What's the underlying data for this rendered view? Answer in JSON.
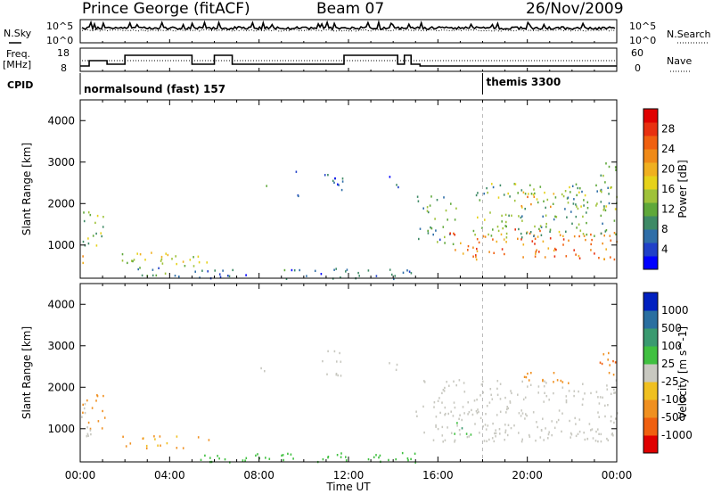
{
  "header": {
    "station": "Prince George (fitACF)",
    "beam": "Beam 07",
    "date": "26/Nov/2009"
  },
  "side_labels": {
    "nsky": "N.Sky",
    "nsearch": "N.Search",
    "freq_top": "Freq.",
    "freq_unit": "[MHz]",
    "nave": "Nave",
    "cpid": "CPID"
  },
  "noise_axis": {
    "left_top": "10^5",
    "left_bottom": "10^0",
    "right_top": "10^5",
    "right_bottom": "10^0"
  },
  "freq_axis": {
    "left_ticks": [
      "18",
      "8"
    ],
    "right_ticks": [
      "60",
      "0"
    ]
  },
  "cpid": {
    "first": "normalsound (fast) 157",
    "second": "themis 3300",
    "switch_hour": 18
  },
  "x_axis": {
    "label": "Time UT",
    "range_hours": [
      0,
      24
    ],
    "tick_labels": [
      "00:00",
      "04:00",
      "08:00",
      "12:00",
      "16:00",
      "20:00",
      "00:00"
    ]
  },
  "chart_data": [
    {
      "type": "heatmap",
      "panel": "power",
      "ylabel": "Slant Range [km]",
      "ylim": [
        200,
        4500
      ],
      "yticks": [
        "1000",
        "2000",
        "3000",
        "4000"
      ],
      "colorbar_label": "Power [dB]",
      "colorbar_ticks": [
        "4",
        "8",
        "12",
        "16",
        "20",
        "24",
        "28"
      ],
      "colorbar_colors": [
        "#0000ff",
        "#2040c8",
        "#2f6ea8",
        "#3e8a66",
        "#5fa83a",
        "#9fc23a",
        "#e6d21a",
        "#f0b020",
        "#f08a18",
        "#f06010",
        "#e83010",
        "#e00000"
      ],
      "regions": [
        {
          "t": [
            0.0,
            1.1
          ],
          "r": [
            1000,
            1900
          ],
          "v": 14
        },
        {
          "t": [
            0.0,
            0.3
          ],
          "r": [
            500,
            800
          ],
          "v": 18
        },
        {
          "t": [
            1.8,
            5.8
          ],
          "r": [
            500,
            850
          ],
          "v": 16
        },
        {
          "t": [
            2.5,
            5.0
          ],
          "r": [
            250,
            500
          ],
          "v": 9
        },
        {
          "t": [
            5.0,
            15.0
          ],
          "r": [
            200,
            450
          ],
          "v": 6
        },
        {
          "t": [
            8.0,
            8.5
          ],
          "r": [
            2400,
            2600
          ],
          "v": 8
        },
        {
          "t": [
            9.6,
            10.0
          ],
          "r": [
            2200,
            2800
          ],
          "v": 6
        },
        {
          "t": [
            10.8,
            11.8
          ],
          "r": [
            2300,
            2900
          ],
          "v": 6
        },
        {
          "t": [
            13.8,
            14.2
          ],
          "r": [
            2400,
            2700
          ],
          "v": 6
        },
        {
          "t": [
            15.0,
            16.8
          ],
          "r": [
            1000,
            2200
          ],
          "v": 10
        },
        {
          "t": [
            16.5,
            24.0
          ],
          "r": [
            650,
            1400
          ],
          "v": 24
        },
        {
          "t": [
            17.5,
            24.0
          ],
          "r": [
            1200,
            2500
          ],
          "v": 12
        },
        {
          "t": [
            19.5,
            21.5
          ],
          "r": [
            1900,
            2300
          ],
          "v": 20
        },
        {
          "t": [
            23.2,
            24.0
          ],
          "r": [
            2300,
            3000
          ],
          "v": 14
        }
      ]
    },
    {
      "type": "heatmap",
      "panel": "velocity",
      "ylabel": "Slant Range [km]",
      "ylim": [
        200,
        4500
      ],
      "yticks": [
        "1000",
        "2000",
        "3000",
        "4000"
      ],
      "colorbar_label": "Velocity [m s^-1]",
      "colorbar_ticks": [
        "1000",
        "500",
        "100",
        "25",
        "-25",
        "-100",
        "-500",
        "-1000"
      ],
      "colorbar_colors": [
        "#0020c0",
        "#2a6fa0",
        "#3a9a70",
        "#40c040",
        "#c8c8c0",
        "#f0c020",
        "#f09020",
        "#f06010",
        "#e00000"
      ],
      "regions": [
        {
          "t": [
            0.0,
            1.1
          ],
          "r": [
            1000,
            1900
          ],
          "v": -300
        },
        {
          "t": [
            0.0,
            0.5
          ],
          "r": [
            600,
            1700
          ],
          "v": 0
        },
        {
          "t": [
            1.8,
            5.8
          ],
          "r": [
            550,
            850
          ],
          "v": -150
        },
        {
          "t": [
            5.0,
            15.0
          ],
          "r": [
            200,
            450
          ],
          "v": 60
        },
        {
          "t": [
            8.0,
            8.5
          ],
          "r": [
            2400,
            2600
          ],
          "v": 0
        },
        {
          "t": [
            10.8,
            11.8
          ],
          "r": [
            2300,
            2900
          ],
          "v": 0
        },
        {
          "t": [
            13.8,
            14.2
          ],
          "r": [
            2400,
            2700
          ],
          "v": 0
        },
        {
          "t": [
            15.0,
            24.0
          ],
          "r": [
            700,
            2200
          ],
          "v": 0
        },
        {
          "t": [
            16.7,
            17.5
          ],
          "r": [
            800,
            1300
          ],
          "v": 80
        },
        {
          "t": [
            19.5,
            22.0
          ],
          "r": [
            2100,
            2400
          ],
          "v": -300
        },
        {
          "t": [
            23.2,
            24.0
          ],
          "r": [
            2300,
            2900
          ],
          "v": -400
        }
      ]
    }
  ]
}
